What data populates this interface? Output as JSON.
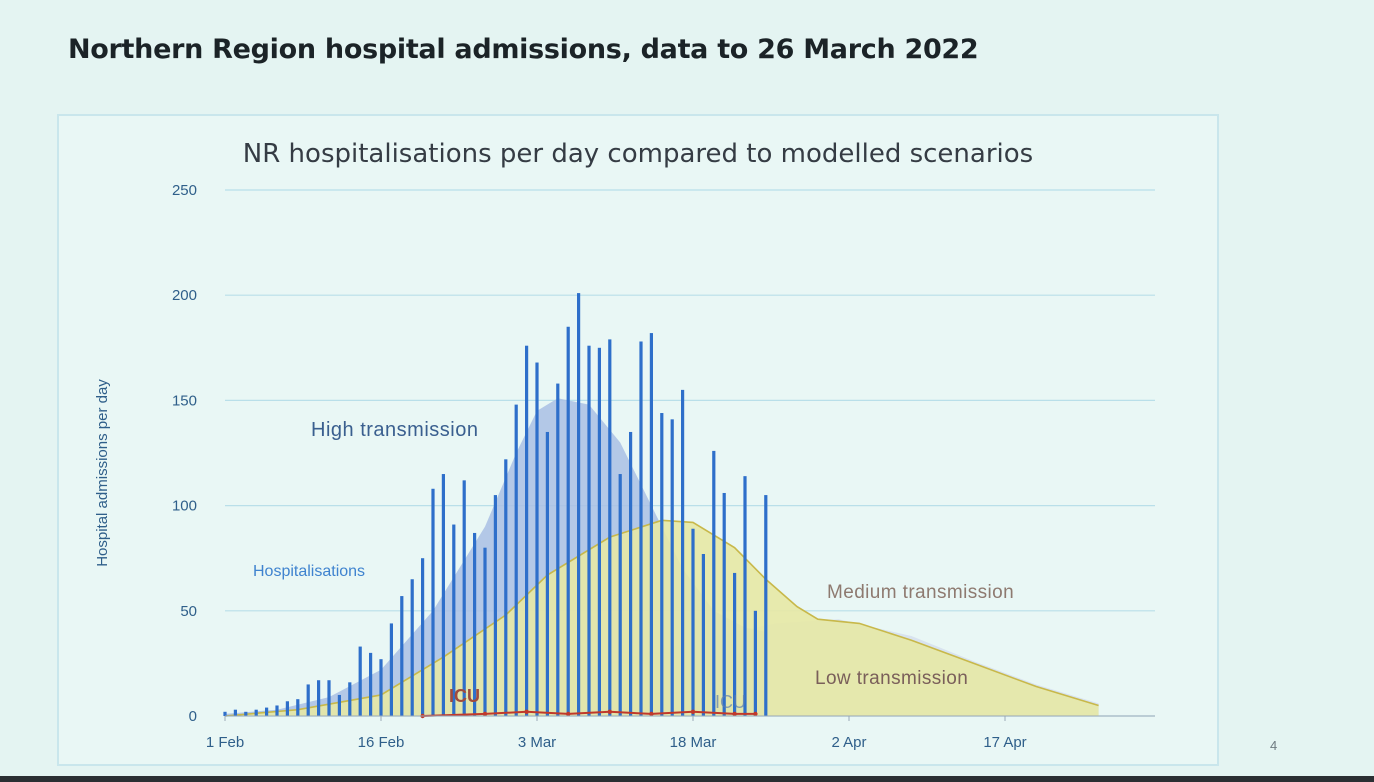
{
  "slide": {
    "title": "Northern Region hospital admissions, data to 26 March 2022",
    "page_number": "4"
  },
  "chart_data": {
    "type": "bar",
    "title": "NR hospitalisations per day compared to modelled scenarios",
    "ylabel": "Hospital admissions per day",
    "xlabel": "",
    "ylim": [
      0,
      250
    ],
    "yticks": [
      0,
      50,
      100,
      150,
      200,
      250
    ],
    "x_start_label": "1 Feb",
    "x_tick_labels": [
      "1 Feb",
      "16 Feb",
      "3 Mar",
      "18 Mar",
      "2 Apr",
      "17 Apr"
    ],
    "x_tick_positions": [
      "1 Feb",
      "16 Feb",
      "3 Mar",
      "18 Mar",
      "2 Apr",
      "17 Apr"
    ],
    "grid": true,
    "colors": {
      "hospitalisations": "#2e6fca",
      "high": "#a9c0e4",
      "medium": "#e7e8a5",
      "medium_line": "#c8b84a",
      "low": "#d8e3ef",
      "low_line": "#9aa9b8",
      "icu": "#c0392b",
      "grid": "#b9dfe9",
      "axis_text": "#2f5f8a"
    },
    "series": [
      {
        "name": "Hospitalisations",
        "kind": "bars",
        "x": [
          "1 Feb",
          "2 Feb",
          "3 Feb",
          "4 Feb",
          "5 Feb",
          "6 Feb",
          "7 Feb",
          "8 Feb",
          "9 Feb",
          "10 Feb",
          "11 Feb",
          "12 Feb",
          "13 Feb",
          "14 Feb",
          "15 Feb",
          "16 Feb",
          "17 Feb",
          "18 Feb",
          "19 Feb",
          "20 Feb",
          "21 Feb",
          "22 Feb",
          "23 Feb",
          "24 Feb",
          "25 Feb",
          "26 Feb",
          "27 Feb",
          "28 Feb",
          "1 Mar",
          "2 Mar",
          "3 Mar",
          "4 Mar",
          "5 Mar",
          "6 Mar",
          "7 Mar",
          "8 Mar",
          "9 Mar",
          "10 Mar",
          "11 Mar",
          "12 Mar",
          "13 Mar",
          "14 Mar",
          "15 Mar",
          "16 Mar",
          "17 Mar",
          "18 Mar",
          "19 Mar",
          "20 Mar",
          "21 Mar",
          "22 Mar",
          "23 Mar",
          "24 Mar",
          "25 Mar",
          "26 Mar"
        ],
        "values": [
          2,
          3,
          2,
          3,
          4,
          5,
          7,
          8,
          15,
          17,
          17,
          10,
          16,
          33,
          30,
          27,
          44,
          57,
          65,
          75,
          108,
          115,
          91,
          112,
          87,
          80,
          105,
          122,
          148,
          176,
          168,
          135,
          158,
          185,
          201,
          176,
          175,
          179,
          115,
          135,
          178,
          182,
          144,
          141,
          155,
          89,
          77,
          126,
          106,
          68,
          114,
          50,
          105,
          0
        ]
      },
      {
        "name": "High transmission",
        "kind": "area",
        "x": [
          "1 Feb",
          "6 Feb",
          "11 Feb",
          "16 Feb",
          "21 Feb",
          "26 Feb",
          "1 Mar",
          "3 Mar",
          "5 Mar",
          "8 Mar",
          "11 Mar",
          "14 Mar",
          "17 Mar",
          "20 Mar",
          "23 Mar",
          "25 Mar"
        ],
        "values": [
          1,
          3,
          9,
          22,
          50,
          90,
          125,
          145,
          151,
          148,
          130,
          100,
          70,
          50,
          42,
          40
        ]
      },
      {
        "name": "Medium transmission",
        "kind": "area",
        "x": [
          "1 Feb",
          "8 Feb",
          "16 Feb",
          "22 Feb",
          "28 Feb",
          "4 Mar",
          "10 Mar",
          "15 Mar",
          "18 Mar",
          "22 Mar",
          "25 Mar",
          "28 Mar",
          "30 Mar",
          "3 Apr",
          "8 Apr",
          "14 Apr",
          "20 Apr",
          "26 Apr"
        ],
        "values": [
          0,
          3,
          10,
          28,
          48,
          67,
          85,
          93,
          92,
          80,
          65,
          52,
          46,
          44,
          36,
          25,
          14,
          5
        ]
      },
      {
        "name": "Low transmission",
        "kind": "area",
        "x": [
          "1 Feb",
          "10 Feb",
          "18 Feb",
          "26 Feb",
          "4 Mar",
          "12 Mar",
          "20 Mar",
          "26 Mar",
          "1 Apr",
          "8 Apr",
          "14 Apr",
          "20 Apr",
          "26 Apr"
        ],
        "values": [
          0,
          2,
          5,
          10,
          18,
          28,
          38,
          44,
          46,
          38,
          26,
          15,
          6
        ]
      },
      {
        "name": "ICU",
        "kind": "line",
        "x": [
          "20 Feb",
          "26 Feb",
          "2 Mar",
          "6 Mar",
          "10 Mar",
          "14 Mar",
          "18 Mar",
          "22 Mar",
          "24 Mar"
        ],
        "values": [
          0,
          1,
          2,
          1,
          2,
          1,
          2,
          1,
          1
        ]
      }
    ],
    "annotations": [
      {
        "text": "High transmission",
        "anchor_series": "High transmission"
      },
      {
        "text": "Hospitalisations",
        "anchor_series": "Hospitalisations"
      },
      {
        "text": "Medium transmission",
        "anchor_series": "Medium transmission"
      },
      {
        "text": "Low transmission",
        "anchor_series": "Low transmission"
      },
      {
        "text": "ICU",
        "anchor_series": "ICU"
      },
      {
        "text": "ICU",
        "anchor_series": "ICU",
        "partial": true
      }
    ]
  }
}
